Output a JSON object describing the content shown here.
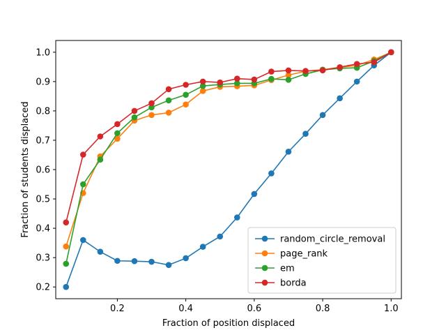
{
  "chart_data": {
    "type": "line",
    "title": "",
    "xlabel": "Fraction of position displaced",
    "ylabel": "Fraction of students displaced",
    "xlim": [
      0.02,
      1.03
    ],
    "ylim": [
      0.16,
      1.04
    ],
    "xticks": [
      0.2,
      0.4,
      0.6,
      0.8,
      1.0
    ],
    "xtick_labels": [
      "0.2",
      "0.4",
      "0.6",
      "0.8",
      "1.0"
    ],
    "yticks": [
      0.2,
      0.3,
      0.4,
      0.5,
      0.6,
      0.7,
      0.8,
      0.9,
      1.0
    ],
    "ytick_labels": [
      "0.2",
      "0.3",
      "0.4",
      "0.5",
      "0.6",
      "0.7",
      "0.8",
      "0.9",
      "1.0"
    ],
    "grid": false,
    "legend_position": "lower-right",
    "x": [
      0.05,
      0.1,
      0.15,
      0.2,
      0.25,
      0.3,
      0.35,
      0.4,
      0.45,
      0.5,
      0.55,
      0.6,
      0.65,
      0.7,
      0.75,
      0.8,
      0.85,
      0.9,
      0.95,
      1.0
    ],
    "series": [
      {
        "name": "random_circle_removal",
        "color": "#1f77b4",
        "values": [
          0.2,
          0.36,
          0.32,
          0.289,
          0.288,
          0.286,
          0.275,
          0.298,
          0.337,
          0.372,
          0.437,
          0.517,
          0.587,
          0.661,
          0.722,
          0.786,
          0.843,
          0.9,
          0.955,
          1.0
        ]
      },
      {
        "name": "page_rank",
        "color": "#ff7f0e",
        "values": [
          0.338,
          0.52,
          0.645,
          0.705,
          0.767,
          0.786,
          0.794,
          0.822,
          0.868,
          0.882,
          0.884,
          0.887,
          0.905,
          0.922,
          0.935,
          0.941,
          0.948,
          0.955,
          0.975,
          1.0
        ]
      },
      {
        "name": "em",
        "color": "#2ca02c",
        "values": [
          0.279,
          0.55,
          0.634,
          0.724,
          0.778,
          0.812,
          0.836,
          0.855,
          0.885,
          0.89,
          0.894,
          0.894,
          0.909,
          0.906,
          0.926,
          0.94,
          0.945,
          0.947,
          0.97,
          1.0
        ]
      },
      {
        "name": "borda",
        "color": "#d62728",
        "values": [
          0.42,
          0.651,
          0.713,
          0.755,
          0.8,
          0.826,
          0.874,
          0.889,
          0.9,
          0.897,
          0.91,
          0.907,
          0.934,
          0.938,
          0.936,
          0.938,
          0.949,
          0.96,
          0.966,
          1.0
        ]
      }
    ]
  }
}
